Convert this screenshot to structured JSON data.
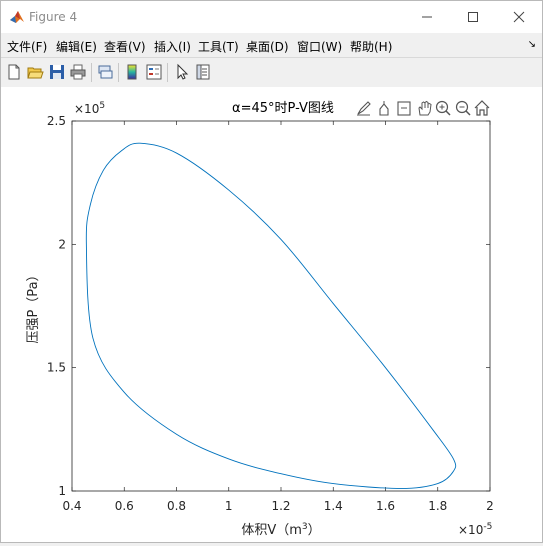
{
  "window": {
    "title": "Figure 4"
  },
  "menu": [
    "文件(F)",
    "编辑(E)",
    "查看(V)",
    "插入(I)",
    "工具(T)",
    "桌面(D)",
    "窗口(W)",
    "帮助(H)"
  ],
  "menu_overflow": "↘",
  "toolbar_icons": [
    "new-figure-icon",
    "open-file-icon",
    "save-icon",
    "print-icon",
    "link-plot-icon",
    "insert-colorbar-icon",
    "insert-legend-icon",
    "select-arrow-icon",
    "property-inspector-icon"
  ],
  "axes_toolbar_icons": [
    "brush-icon",
    "data-tips-icon",
    "restore-view-icon",
    "pan-hand-icon",
    "zoom-in-icon",
    "zoom-out-icon",
    "home-icon"
  ],
  "chart_data": {
    "type": "line",
    "title": "α=45°时P-V图线",
    "xlabel": "体积V（m",
    "xlabel_sup": "3",
    "xlabel_close": "）",
    "ylabel": "压强P（Pa）",
    "xlim": [
      0.4,
      2.0
    ],
    "ylim": [
      1.0,
      2.5
    ],
    "x_multiplier": "×10",
    "x_multiplier_exp": "-5",
    "y_multiplier": "×10",
    "y_multiplier_exp": "5",
    "xticks": [
      "0.4",
      "0.6",
      "0.8",
      "1",
      "1.2",
      "1.4",
      "1.6",
      "1.8",
      "2"
    ],
    "yticks": [
      "1",
      "1.5",
      "2",
      "2.5"
    ],
    "series": [
      {
        "color": "#0072BD",
        "x": [
          0.66,
          0.8,
          1.0,
          1.2,
          1.4,
          1.6,
          1.78,
          1.86,
          1.86,
          1.8,
          1.66,
          1.4,
          1.2,
          1.0,
          0.8,
          0.6,
          0.48,
          0.455,
          0.47,
          0.52,
          0.59,
          0.66
        ],
        "y": [
          2.41,
          2.37,
          2.22,
          2.02,
          1.76,
          1.5,
          1.25,
          1.13,
          1.08,
          1.03,
          1.01,
          1.03,
          1.07,
          1.13,
          1.23,
          1.4,
          1.62,
          2.0,
          2.16,
          2.3,
          2.38,
          2.41
        ]
      }
    ]
  }
}
